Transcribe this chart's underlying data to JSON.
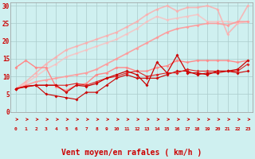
{
  "background_color": "#cff0f0",
  "grid_color": "#aacccc",
  "xlabel": "Vent moyen/en rafales ( km/h )",
  "xlabel_color": "#cc0000",
  "xlabel_fontsize": 7,
  "tick_color": "#cc0000",
  "xlim": [
    -0.5,
    23.5
  ],
  "ylim": [
    0,
    31
  ],
  "yticks": [
    0,
    5,
    10,
    15,
    20,
    25,
    30
  ],
  "xticks": [
    0,
    1,
    2,
    3,
    4,
    5,
    6,
    7,
    8,
    9,
    10,
    11,
    12,
    13,
    14,
    15,
    16,
    17,
    18,
    19,
    20,
    21,
    22,
    23
  ],
  "x": [
    0,
    1,
    2,
    3,
    4,
    5,
    6,
    7,
    8,
    9,
    10,
    11,
    12,
    13,
    14,
    15,
    16,
    17,
    18,
    19,
    20,
    21,
    22,
    23
  ],
  "lines": [
    {
      "y": [
        6.5,
        7.2,
        7.5,
        7.5,
        7.5,
        5.5,
        7.5,
        7.2,
        8.0,
        9.5,
        10.5,
        11.5,
        10.5,
        7.5,
        14.0,
        11.0,
        16.0,
        11.0,
        11.0,
        10.5,
        11.5,
        11.5,
        12.0,
        14.5
      ],
      "color": "#cc0000",
      "lw": 0.9,
      "marker": "D",
      "ms": 2.0,
      "alpha": 1.0,
      "zorder": 5
    },
    {
      "y": [
        6.5,
        7.2,
        7.5,
        5.0,
        4.5,
        4.0,
        3.5,
        5.5,
        5.5,
        7.5,
        9.5,
        10.5,
        9.5,
        9.5,
        9.5,
        10.5,
        11.5,
        11.5,
        10.5,
        11.0,
        11.0,
        11.5,
        11.0,
        11.5
      ],
      "color": "#cc0000",
      "lw": 0.8,
      "marker": "D",
      "ms": 2.0,
      "alpha": 1.0,
      "zorder": 4
    },
    {
      "y": [
        6.5,
        7.0,
        7.5,
        7.5,
        7.5,
        7.5,
        8.0,
        7.5,
        8.5,
        9.5,
        10.0,
        11.0,
        11.5,
        10.0,
        10.5,
        11.0,
        11.0,
        12.0,
        11.5,
        11.5,
        11.5,
        11.5,
        11.5,
        13.5
      ],
      "color": "#dd2222",
      "lw": 0.8,
      "marker": "D",
      "ms": 2.0,
      "alpha": 1.0,
      "zorder": 4
    },
    {
      "y": [
        12.5,
        14.5,
        12.5,
        12.5,
        7.0,
        6.0,
        7.5,
        8.0,
        10.5,
        11.0,
        12.5,
        12.5,
        11.5,
        11.5,
        12.5,
        13.0,
        14.5,
        14.0,
        14.5,
        14.5,
        14.5,
        14.5,
        14.0,
        14.5
      ],
      "color": "#ff8888",
      "lw": 1.0,
      "marker": "D",
      "ms": 2.0,
      "alpha": 1.0,
      "zorder": 3
    },
    {
      "y": [
        6.5,
        7.5,
        8.5,
        9.0,
        9.5,
        10.0,
        10.5,
        11.0,
        12.0,
        13.5,
        15.0,
        16.5,
        18.0,
        19.5,
        21.0,
        22.5,
        23.5,
        24.0,
        24.5,
        25.0,
        25.0,
        24.5,
        25.5,
        25.5
      ],
      "color": "#ff9999",
      "lw": 1.2,
      "marker": "D",
      "ms": 2.0,
      "alpha": 0.9,
      "zorder": 2
    },
    {
      "y": [
        6.5,
        8.5,
        11.0,
        13.5,
        15.5,
        17.5,
        18.5,
        19.5,
        20.5,
        21.5,
        22.5,
        24.0,
        25.5,
        27.5,
        29.0,
        30.0,
        28.5,
        29.5,
        29.5,
        30.0,
        29.0,
        22.0,
        25.0,
        30.0
      ],
      "color": "#ffaaaa",
      "lw": 1.2,
      "marker": "D",
      "ms": 2.0,
      "alpha": 0.8,
      "zorder": 1
    },
    {
      "y": [
        6.5,
        8.0,
        10.0,
        12.0,
        13.5,
        15.5,
        16.5,
        17.5,
        18.5,
        19.5,
        20.5,
        22.0,
        23.5,
        25.5,
        27.0,
        26.0,
        26.5,
        27.0,
        27.5,
        25.5,
        25.5,
        25.5,
        25.0,
        25.5
      ],
      "color": "#ffbbbb",
      "lw": 1.2,
      "marker": "D",
      "ms": 2.0,
      "alpha": 0.7,
      "zorder": 1
    }
  ],
  "arrow_color": "#cc0000"
}
